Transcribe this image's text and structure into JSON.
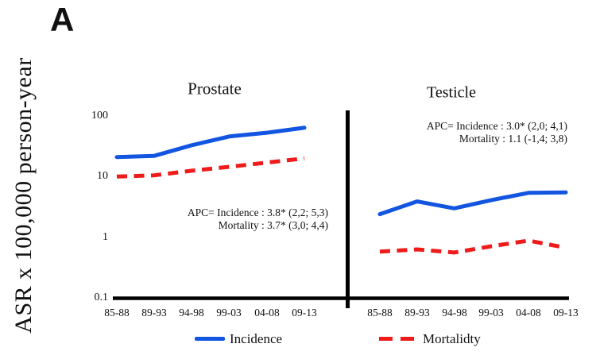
{
  "figure": {
    "panel_label": "A",
    "y_axis_title": "ASR x 100,000 person-year"
  },
  "axis": {
    "scale": "log",
    "yticks": [
      "100",
      "10",
      "1",
      "0.1"
    ],
    "ymin": 0.1,
    "ymax": 100
  },
  "legend": {
    "incidence": "Incidence",
    "mortality": "Mortalidty"
  },
  "chart_data": [
    {
      "type": "line",
      "title": "Prostate",
      "categories": [
        "85-88",
        "89-93",
        "94-98",
        "99-03",
        "04-08",
        "09-13"
      ],
      "yscale": "log",
      "ylim": [
        0.1,
        100
      ],
      "series": [
        {
          "name": "Incidence",
          "color": "#1155e0",
          "style": "solid",
          "values": [
            21,
            22,
            33,
            46,
            53,
            64
          ]
        },
        {
          "name": "Mortality",
          "color": "#ee1b1b",
          "style": "dashed",
          "values": [
            10,
            10.5,
            12.5,
            14.5,
            17,
            20
          ]
        }
      ],
      "annotation_line1": "APC= Incidence : 3.8* (2,2; 5,3)",
      "annotation_line2": "Mortality : 3.7* (3,0; 4,4)"
    },
    {
      "type": "line",
      "title": "Testicle",
      "categories": [
        "85-88",
        "89-93",
        "94-98",
        "99-03",
        "04-08",
        "09-13"
      ],
      "yscale": "log",
      "ylim": [
        0.1,
        100
      ],
      "series": [
        {
          "name": "Incidence",
          "color": "#1155e0",
          "style": "solid",
          "values": [
            2.4,
            3.9,
            3.0,
            4.1,
            5.4,
            5.5
          ]
        },
        {
          "name": "Mortality",
          "color": "#ee1b1b",
          "style": "dashed",
          "values": [
            0.58,
            0.63,
            0.56,
            0.71,
            0.88,
            0.67
          ]
        }
      ],
      "annotation_line1": "APC= Incidence : 3.0* (2,0; 4,1)",
      "annotation_line2": "Mortality : 1.1 (-1,4; 3,8)"
    }
  ]
}
